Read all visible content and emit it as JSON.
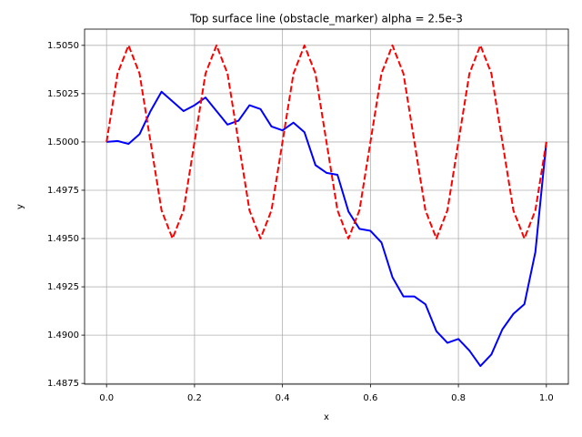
{
  "chart_data": {
    "type": "line",
    "title": "Top surface line (obstacle_marker) alpha = 2.5e-3",
    "xlabel": "x",
    "ylabel": "y",
    "x": [
      0,
      0.025,
      0.05,
      0.075,
      0.1,
      0.125,
      0.15,
      0.175,
      0.2,
      0.225,
      0.25,
      0.275,
      0.3,
      0.325,
      0.35,
      0.375,
      0.4,
      0.425,
      0.45,
      0.475,
      0.5,
      0.525,
      0.55,
      0.575,
      0.6,
      0.625,
      0.65,
      0.675,
      0.7,
      0.725,
      0.75,
      0.775,
      0.8,
      0.825,
      0.85,
      0.875,
      0.9,
      0.925,
      0.95,
      0.975,
      1
    ],
    "series": [
      {
        "color": "#0000ff",
        "linestyle": "solid",
        "values": [
          1.5,
          1.50005,
          1.4999,
          1.5004,
          1.5016,
          1.5026,
          1.5021,
          1.5016,
          1.5019,
          1.5023,
          1.5016,
          1.5009,
          1.5011,
          1.5019,
          1.5017,
          1.5008,
          1.5006,
          1.501,
          1.5005,
          1.4988,
          1.4984,
          1.4983,
          1.4964,
          1.4955,
          1.4954,
          1.4948,
          1.493,
          1.492,
          1.492,
          1.4916,
          1.4902,
          1.4896,
          1.4898,
          1.4892,
          1.4884,
          1.489,
          1.4903,
          1.4911,
          1.4916,
          1.4943,
          1.5
        ]
      },
      {
        "color": "#ff0000",
        "linestyle": "dashed",
        "values": [
          1.5,
          1.50354,
          1.505,
          1.50354,
          1.5,
          1.49646,
          1.495,
          1.49646,
          1.5,
          1.50354,
          1.505,
          1.50354,
          1.5,
          1.49646,
          1.495,
          1.49646,
          1.5,
          1.50354,
          1.505,
          1.50354,
          1.5,
          1.49646,
          1.495,
          1.49646,
          1.5,
          1.50354,
          1.505,
          1.50354,
          1.5,
          1.49646,
          1.495,
          1.49646,
          1.5,
          1.50354,
          1.505,
          1.50354,
          1.5,
          1.49646,
          1.495,
          1.49646,
          1.5
        ]
      }
    ],
    "xlim": [
      -0.05,
      1.05
    ],
    "xticks": [
      {
        "value": 0,
        "label": "0.0"
      },
      0.2,
      0.4,
      0.6,
      0.8,
      {
        "value": 1,
        "label": "1.0"
      }
    ],
    "ylim": [
      1.48746,
      1.50584
    ],
    "yticks": [
      {
        "value": 1.4875,
        "label": "1.4875"
      },
      {
        "value": 1.49,
        "label": "1.4900"
      },
      {
        "value": 1.4925,
        "label": "1.4925"
      },
      {
        "value": 1.495,
        "label": "1.4950"
      },
      {
        "value": 1.4975,
        "label": "1.4975"
      },
      {
        "value": 1.5,
        "label": "1.5000"
      },
      {
        "value": 1.5025,
        "label": "1.5025"
      },
      {
        "value": 1.505,
        "label": "1.5050"
      }
    ],
    "grid": true
  }
}
